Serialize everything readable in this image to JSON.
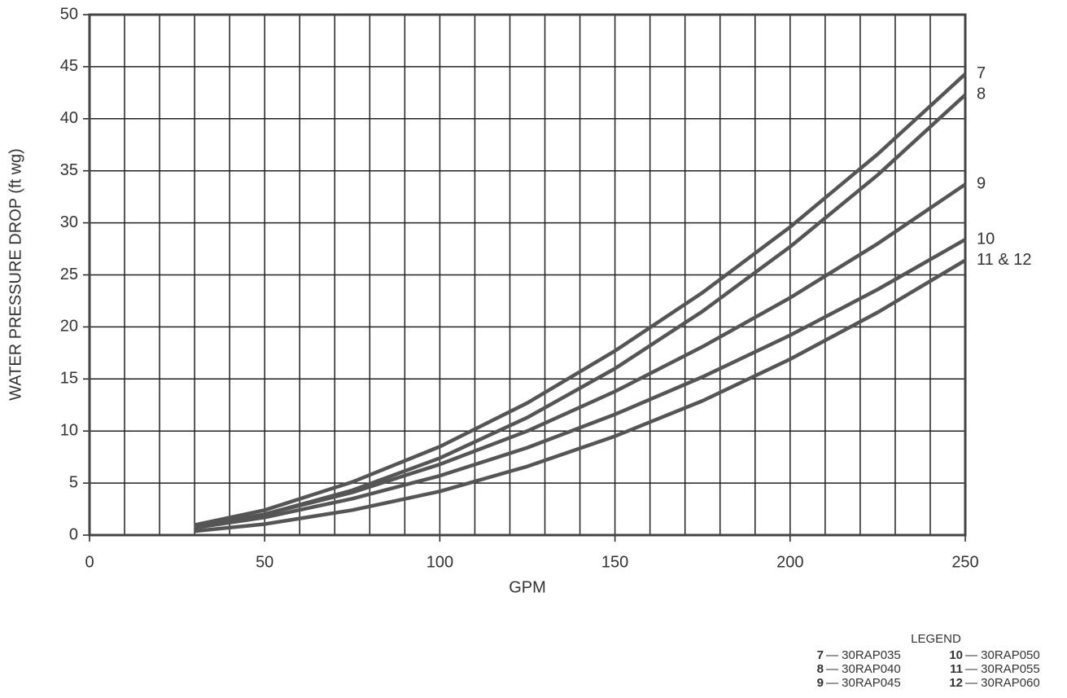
{
  "chart_data": {
    "type": "line",
    "x_label": "GPM",
    "y_label": "WATER  PRESSURE DROP (ft wg)",
    "x": [
      30,
      50,
      75,
      100,
      125,
      150,
      175,
      200,
      225,
      250
    ],
    "series": [
      {
        "name": "7",
        "color": "#555555",
        "values": [
          0.97,
          2.4,
          5.1,
          8.5,
          12.7,
          17.7,
          23.3,
          29.6,
          36.6,
          44.3
        ]
      },
      {
        "name": "8",
        "color": "#555555",
        "values": [
          0.75,
          2.0,
          4.3,
          7.4,
          11.3,
          16.0,
          21.5,
          27.7,
          34.6,
          42.3
        ]
      },
      {
        "name": "9",
        "color": "#555555",
        "values": [
          0.8,
          2.0,
          4.1,
          6.8,
          10.0,
          13.8,
          18.1,
          22.8,
          28.0,
          33.7
        ]
      },
      {
        "name": "10",
        "color": "#555555",
        "values": [
          0.7,
          1.7,
          3.5,
          5.7,
          8.4,
          11.6,
          15.2,
          19.2,
          23.6,
          28.4
        ]
      },
      {
        "name": "11 & 12",
        "color": "#555555",
        "values": [
          0.38,
          1.06,
          2.4,
          4.2,
          6.6,
          9.5,
          12.9,
          16.9,
          21.4,
          26.4
        ]
      }
    ],
    "xlim": [
      0,
      250
    ],
    "xticks": [
      0,
      50,
      100,
      150,
      200,
      250
    ],
    "x_gridlines": [
      10,
      20,
      30,
      40,
      60,
      70,
      80,
      90,
      110,
      120,
      130,
      140,
      160,
      170,
      180,
      190,
      210,
      220,
      230,
      240
    ],
    "ylim": [
      0,
      50
    ],
    "yticks": [
      0,
      5,
      10,
      15,
      20,
      25,
      30,
      35,
      40,
      45,
      50
    ],
    "grid": true,
    "legend": {
      "title": "LEGEND",
      "entries": [
        {
          "key": "7",
          "text": "— 30RAP035"
        },
        {
          "key": "8",
          "text": "— 30RAP040"
        },
        {
          "key": "9",
          "text": "— 30RAP045"
        },
        {
          "key": "10",
          "text": "— 30RAP050"
        },
        {
          "key": "11",
          "text": "— 30RAP055"
        },
        {
          "key": "12",
          "text": "— 30RAP060"
        }
      ]
    }
  }
}
